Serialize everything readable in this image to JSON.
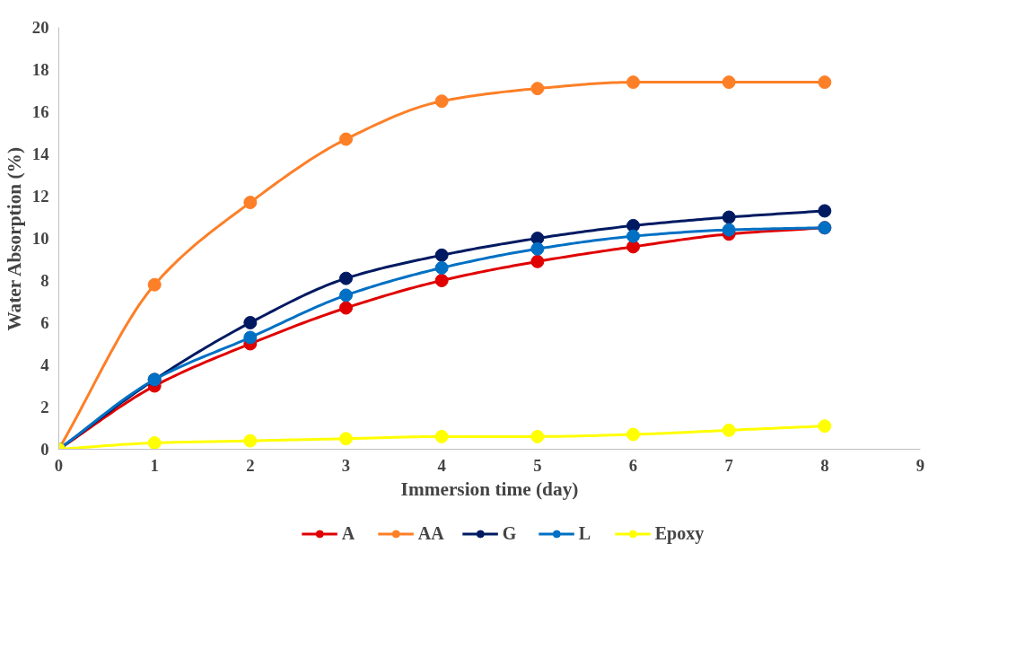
{
  "chart_data": {
    "type": "line",
    "xlabel": "Immersion time (day)",
    "ylabel": "Water Absorption (%)",
    "x": [
      0,
      1,
      2,
      3,
      4,
      5,
      6,
      7,
      8
    ],
    "series": [
      {
        "name": "A",
        "color": "#e00000",
        "values": [
          0,
          3.0,
          5.0,
          6.7,
          8.0,
          8.9,
          9.6,
          10.2,
          10.5
        ]
      },
      {
        "name": "AA",
        "color": "#fd7f27",
        "values": [
          0,
          7.8,
          11.7,
          14.7,
          16.5,
          17.1,
          17.4,
          17.4,
          17.4
        ]
      },
      {
        "name": "G",
        "color": "#001a62",
        "values": [
          0,
          3.3,
          6.0,
          8.1,
          9.2,
          10.0,
          10.6,
          11.0,
          11.3
        ]
      },
      {
        "name": "L",
        "color": "#0070c4",
        "values": [
          0,
          3.3,
          5.3,
          7.3,
          8.6,
          9.5,
          10.1,
          10.4,
          10.5
        ]
      },
      {
        "name": "Epoxy",
        "color": "#ffff00",
        "values": [
          0,
          0.3,
          0.4,
          0.5,
          0.6,
          0.6,
          0.7,
          0.9,
          1.1
        ]
      }
    ],
    "xlim": [
      0,
      9
    ],
    "xticks": [
      0,
      1,
      2,
      3,
      4,
      5,
      6,
      7,
      8,
      9
    ],
    "ylim": [
      0,
      20
    ],
    "yticks": [
      0,
      2,
      4,
      6,
      8,
      10,
      12,
      14,
      16,
      18,
      20
    ],
    "grid": false,
    "legend": "bottom",
    "marker": "circle",
    "line_style": "solid"
  }
}
